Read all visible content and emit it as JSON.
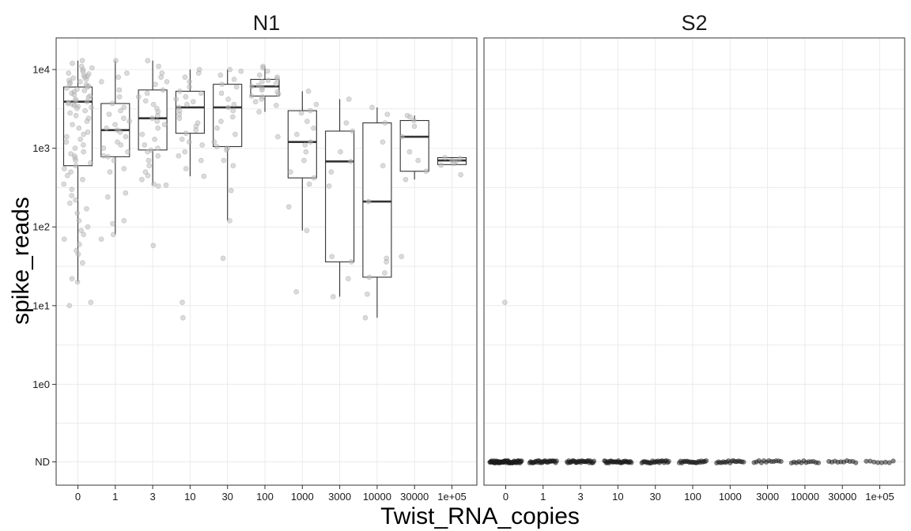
{
  "chart_data": {
    "type": "box",
    "xlabel": "Twist_RNA_copies",
    "ylabel": "spike_reads",
    "y_scale": "log10 with ND (not detected) floor",
    "categories": [
      "0",
      "1",
      "3",
      "10",
      "30",
      "100",
      "1000",
      "3000",
      "10000",
      "30000",
      "1e+05"
    ],
    "y_ticks": [
      "ND",
      "1e0",
      "1e1",
      "1e2",
      "1e3",
      "1e4"
    ],
    "grid": true,
    "colors": {
      "box_line": "#333333",
      "points": "#bdbdbd",
      "nd_points": "#222222",
      "panel_border": "#333333"
    },
    "facets": [
      {
        "title": "N1",
        "boxes": [
          {
            "x": "0",
            "whisker_low": 20,
            "q1": 600,
            "median": 3900,
            "q3": 6000,
            "whisker_high": 13000
          },
          {
            "x": "1",
            "whisker_low": 80,
            "q1": 780,
            "median": 1700,
            "q3": 3700,
            "whisker_high": 13000
          },
          {
            "x": "3",
            "whisker_low": 340,
            "q1": 950,
            "median": 2400,
            "q3": 5500,
            "whisker_high": 13000
          },
          {
            "x": "10",
            "whisker_low": 440,
            "q1": 1550,
            "median": 3300,
            "q3": 5300,
            "whisker_high": 10000
          },
          {
            "x": "30",
            "whisker_low": 120,
            "q1": 1050,
            "median": 3300,
            "q3": 6500,
            "whisker_high": 10000
          },
          {
            "x": "100",
            "whisker_low": 2900,
            "q1": 4600,
            "median": 6100,
            "q3": 7500,
            "whisker_high": 11000
          },
          {
            "x": "1000",
            "whisker_low": 90,
            "q1": 420,
            "median": 1200,
            "q3": 3000,
            "whisker_high": 5300
          },
          {
            "x": "3000",
            "whisker_low": 13,
            "q1": 36,
            "median": 680,
            "q3": 1650,
            "whisker_high": 4200
          },
          {
            "x": "10000",
            "whisker_low": 7,
            "q1": 23,
            "median": 210,
            "q3": 2100,
            "whisker_high": 3300
          },
          {
            "x": "30000",
            "whisker_low": 400,
            "q1": 510,
            "median": 1400,
            "q3": 2250,
            "whisker_high": 2600
          },
          {
            "x": "1e+05",
            "whisker_low": 610,
            "q1": 620,
            "median": 700,
            "q3": 760,
            "whisker_high": 760
          }
        ],
        "points": [
          {
            "x": "0",
            "values": [
              13000,
              12000,
              11000,
              10500,
              10000,
              9500,
              9000,
              8800,
              8500,
              8200,
              8000,
              7800,
              7500,
              7300,
              7000,
              6800,
              6600,
              6400,
              6200,
              6000,
              5800,
              5600,
              5400,
              5200,
              5000,
              4800,
              4600,
              4400,
              4200,
              4000,
              3900,
              3800,
              3700,
              3600,
              3500,
              3400,
              3300,
              3200,
              3000,
              2800,
              2600,
              2400,
              2200,
              2000,
              1800,
              1600,
              1500,
              1400,
              1300,
              1200,
              1100,
              1000,
              900,
              850,
              800,
              750,
              700,
              650,
              600,
              550,
              500,
              450,
              400,
              350,
              300,
              250,
              220,
              200,
              170,
              150,
              120,
              100,
              90,
              80,
              70,
              60,
              50,
              45,
              35,
              22,
              20,
              11,
              10
            ]
          },
          {
            "x": "1",
            "values": [
              13000,
              9000,
              8000,
              7000,
              5500,
              4500,
              3700,
              3300,
              3000,
              2700,
              2400,
              2200,
              2000,
              1800,
              1700,
              1600,
              1400,
              1200,
              1100,
              1000,
              900,
              800,
              780,
              700,
              550,
              500,
              270,
              240,
              120,
              110,
              80,
              70
            ]
          },
          {
            "x": "3",
            "values": [
              13000,
              11000,
              9000,
              8000,
              7000,
              6500,
              5500,
              5000,
              4500,
              4000,
              3600,
              3200,
              2900,
              2600,
              2400,
              2200,
              2000,
              1800,
              1500,
              1300,
              1100,
              1000,
              950,
              900,
              800,
              700,
              600,
              500,
              450,
              400,
              350,
              340,
              330,
              58
            ]
          },
          {
            "x": "10",
            "values": [
              10000,
              9000,
              8000,
              7000,
              6000,
              5300,
              5000,
              4500,
              4200,
              3900,
              3600,
              3300,
              3000,
              2700,
              2400,
              2100,
              1900,
              1700,
              1550,
              1300,
              1200,
              1100,
              900,
              800,
              700,
              550,
              440,
              11,
              7
            ]
          },
          {
            "x": "30",
            "values": [
              10000,
              9500,
              8500,
              7500,
              6500,
              6000,
              5000,
              4200,
              3600,
              3300,
              3000,
              2500,
              2200,
              1800,
              1500,
              1200,
              1050,
              1000,
              950,
              700,
              600,
              290,
              120,
              40
            ]
          },
          {
            "x": "100",
            "values": [
              11000,
              10500,
              9500,
              8500,
              8000,
              7600,
              7300,
              7000,
              6600,
              6300,
              6100,
              5800,
              5500,
              5200,
              4900,
              4600,
              4500,
              4200,
              3900,
              3500,
              2900,
              1400
            ]
          },
          {
            "x": "1000",
            "values": [
              5300,
              3600,
              3000,
              2800,
              2200,
              1800,
              1500,
              1200,
              1100,
              900,
              700,
              500,
              420,
              350,
              180,
              90,
              15
            ]
          },
          {
            "x": "3000",
            "values": [
              4200,
              2100,
              1650,
              900,
              680,
              500,
              330,
              42,
              36,
              22,
              13
            ]
          },
          {
            "x": "10000",
            "values": [
              3300,
              2700,
              2100,
              1200,
              600,
              210,
              40,
              36,
              26,
              23,
              14,
              7
            ]
          },
          {
            "x": "30000",
            "values": [
              2600,
              2500,
              2250,
              1900,
              1400,
              900,
              700,
              510,
              400,
              42
            ]
          },
          {
            "x": "1e+05",
            "values": [
              760,
              740,
              700,
              680,
              640,
              610,
              460
            ]
          }
        ]
      },
      {
        "title": "S2",
        "boxes": [],
        "points": [
          {
            "x": "0",
            "values": [
              11
            ],
            "nd_count": 60
          },
          {
            "x": "1",
            "nd_count": 30
          },
          {
            "x": "3",
            "nd_count": 30
          },
          {
            "x": "10",
            "nd_count": 30
          },
          {
            "x": "30",
            "nd_count": 24
          },
          {
            "x": "100",
            "nd_count": 22
          },
          {
            "x": "1000",
            "nd_count": 17
          },
          {
            "x": "3000",
            "nd_count": 12
          },
          {
            "x": "10000",
            "nd_count": 12
          },
          {
            "x": "30000",
            "nd_count": 10
          },
          {
            "x": "1e+05",
            "nd_count": 8
          }
        ]
      }
    ]
  }
}
